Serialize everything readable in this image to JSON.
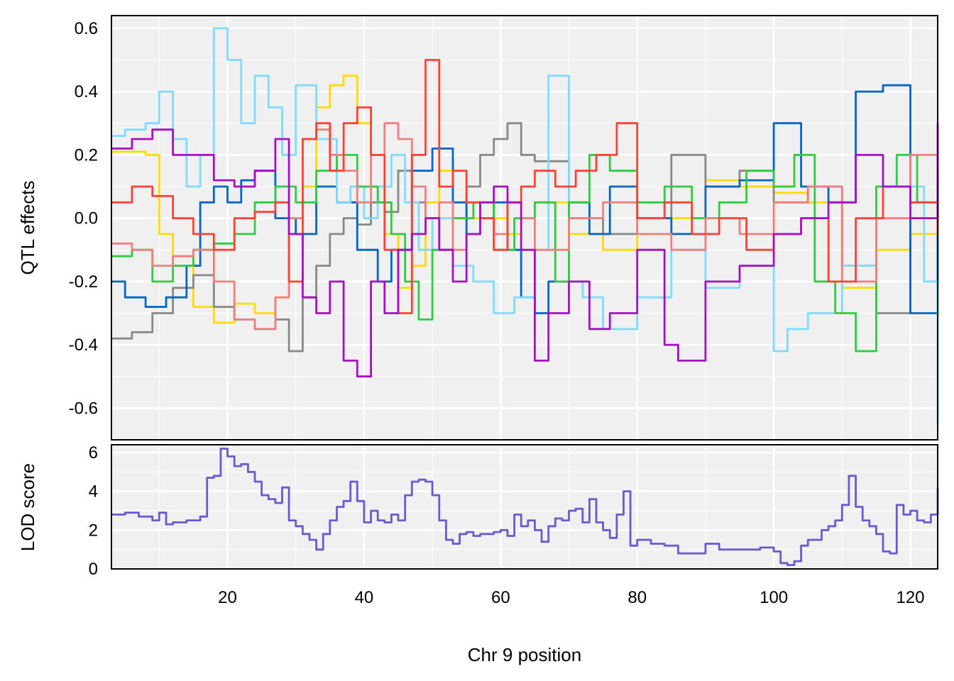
{
  "chart_data": [
    {
      "type": "line",
      "panel": "qtl-effects",
      "ylabel": "QTL effects",
      "xlim": [
        3,
        124
      ],
      "ylim": [
        -0.7,
        0.64
      ],
      "x_ticks": [
        20,
        40,
        60,
        80,
        100,
        120
      ],
      "y_ticks": [
        -0.6,
        -0.4,
        -0.2,
        0.0,
        0.2,
        0.4,
        0.6
      ],
      "y_tick_labels": [
        "-0.6",
        "-0.4",
        "-0.2",
        "0.0",
        "0.2",
        "0.4",
        "0.6"
      ],
      "grid": true,
      "series": [
        {
          "color": "#FFDC00",
          "x": [
            3,
            8,
            10,
            12,
            15,
            18,
            21,
            24,
            27,
            29,
            31,
            33,
            35,
            37,
            39,
            41,
            43,
            45,
            47,
            49,
            51,
            53,
            55,
            57,
            59,
            61,
            63,
            65,
            70,
            75,
            80,
            85,
            90,
            95,
            100,
            105,
            110,
            115,
            120,
            124
          ],
          "y": [
            0.21,
            0.2,
            -0.05,
            -0.12,
            -0.28,
            -0.33,
            -0.27,
            -0.3,
            -0.25,
            -0.2,
            0.1,
            0.35,
            0.42,
            0.45,
            0.3,
            0.1,
            -0.05,
            -0.22,
            -0.15,
            0.05,
            0.15,
            0.05,
            0.0,
            0.05,
            0.0,
            -0.05,
            0.0,
            0.05,
            -0.05,
            -0.1,
            -0.05,
            0.0,
            0.12,
            0.1,
            0.08,
            0.05,
            -0.22,
            -0.1,
            -0.05,
            -0.02
          ]
        },
        {
          "color": "#888888",
          "x": [
            3,
            6,
            9,
            12,
            15,
            18,
            21,
            24,
            27,
            29,
            31,
            33,
            35,
            37,
            39,
            41,
            43,
            45,
            47,
            49,
            51,
            53,
            55,
            57,
            59,
            61,
            63,
            65,
            70,
            75,
            80,
            85,
            90,
            95,
            100,
            105,
            110,
            115,
            120,
            124
          ],
          "y": [
            -0.38,
            -0.36,
            -0.3,
            -0.22,
            -0.18,
            -0.28,
            -0.32,
            -0.35,
            -0.32,
            -0.42,
            -0.25,
            -0.15,
            -0.05,
            0.0,
            -0.02,
            0.05,
            0.02,
            0.15,
            0.05,
            0.0,
            -0.1,
            0.0,
            0.1,
            0.2,
            0.25,
            0.3,
            0.2,
            0.18,
            0.0,
            -0.05,
            0.0,
            0.2,
            0.1,
            0.15,
            0.05,
            0.1,
            -0.15,
            -0.3,
            0.0,
            0.15
          ]
        },
        {
          "color": "#0064C9",
          "x": [
            3,
            5,
            8,
            11,
            14,
            16,
            18,
            20,
            22,
            24,
            27,
            30,
            33,
            36,
            39,
            42,
            44,
            47,
            50,
            53,
            55,
            57,
            59,
            61,
            63,
            65,
            67,
            70,
            73,
            76,
            80,
            85,
            90,
            95,
            100,
            104,
            108,
            112,
            116,
            120,
            124
          ],
          "y": [
            -0.2,
            -0.25,
            -0.28,
            -0.25,
            -0.15,
            0.05,
            0.1,
            0.05,
            0.12,
            0.15,
            0.0,
            -0.05,
            0.1,
            0.05,
            -0.1,
            -0.2,
            -0.1,
            0.15,
            0.22,
            0.05,
            -0.05,
            0.0,
            0.05,
            -0.1,
            -0.25,
            -0.3,
            -0.2,
            0.05,
            -0.05,
            0.1,
            0.0,
            -0.05,
            0.1,
            0.12,
            0.3,
            0.1,
            0.05,
            0.4,
            0.42,
            -0.3,
            0.0
          ]
        },
        {
          "color": "#7FDBFF",
          "x": [
            3,
            5,
            8,
            10,
            12,
            14,
            16,
            18,
            20,
            22,
            24,
            26,
            28,
            30,
            33,
            36,
            38,
            40,
            42,
            44,
            46,
            48,
            50,
            53,
            56,
            59,
            62,
            65,
            67,
            70,
            72,
            75,
            80,
            85,
            90,
            95,
            100,
            102,
            105,
            110,
            115,
            120,
            122,
            124
          ],
          "y": [
            0.26,
            0.28,
            0.3,
            0.4,
            0.25,
            0.1,
            0.2,
            0.6,
            0.5,
            0.3,
            0.45,
            0.35,
            0.2,
            0.42,
            0.25,
            0.05,
            0.1,
            0.0,
            0.1,
            0.2,
            0.05,
            -0.1,
            0.0,
            -0.15,
            -0.2,
            -0.3,
            -0.25,
            -0.1,
            0.45,
            -0.2,
            -0.25,
            -0.35,
            -0.25,
            -0.1,
            -0.22,
            -0.15,
            -0.42,
            -0.35,
            -0.3,
            -0.15,
            0.0,
            0.1,
            -0.2,
            -0.65
          ]
        },
        {
          "color": "#2ECC40",
          "x": [
            3,
            6,
            9,
            12,
            15,
            18,
            21,
            24,
            27,
            30,
            33,
            36,
            39,
            42,
            44,
            46,
            48,
            50,
            53,
            56,
            59,
            62,
            65,
            68,
            70,
            73,
            76,
            80,
            84,
            88,
            92,
            96,
            100,
            103,
            106,
            109,
            112,
            115,
            118,
            121,
            124
          ],
          "y": [
            -0.12,
            -0.1,
            -0.2,
            -0.15,
            -0.1,
            -0.08,
            -0.05,
            0.05,
            0.1,
            0.05,
            0.15,
            0.2,
            0.1,
            0.05,
            -0.05,
            -0.2,
            -0.32,
            -0.1,
            0.0,
            0.05,
            -0.1,
            0.0,
            0.05,
            -0.2,
            0.05,
            0.2,
            0.15,
            0.05,
            0.1,
            0.0,
            0.05,
            0.15,
            0.1,
            0.2,
            -0.2,
            -0.3,
            -0.42,
            0.1,
            0.2,
            0.05,
            -0.05
          ]
        },
        {
          "color": "#F08080",
          "x": [
            3,
            6,
            9,
            12,
            15,
            18,
            21,
            24,
            27,
            29,
            31,
            33,
            35,
            37,
            39,
            41,
            43,
            45,
            47,
            49,
            51,
            53,
            55,
            57,
            59,
            61,
            63,
            65,
            70,
            75,
            80,
            85,
            90,
            95,
            100,
            105,
            110,
            115,
            120,
            124
          ],
          "y": [
            -0.08,
            -0.1,
            -0.15,
            -0.12,
            -0.1,
            -0.2,
            -0.32,
            -0.35,
            -0.25,
            0.0,
            0.25,
            0.28,
            0.2,
            0.15,
            0.05,
            0.2,
            0.3,
            0.25,
            0.1,
            0.0,
            0.05,
            -0.1,
            -0.05,
            0.0,
            -0.05,
            0.05,
            0.0,
            -0.1,
            0.0,
            0.05,
            -0.05,
            -0.1,
            0.0,
            -0.05,
            0.05,
            0.1,
            -0.2,
            0.0,
            0.2,
            0.1
          ]
        },
        {
          "color": "#FF4136",
          "x": [
            3,
            6,
            9,
            12,
            15,
            18,
            21,
            24,
            27,
            29,
            31,
            33,
            35,
            37,
            39,
            41,
            43,
            45,
            47,
            49,
            51,
            53,
            55,
            57,
            59,
            61,
            63,
            65,
            68,
            71,
            74,
            77,
            80,
            84,
            88,
            92,
            96,
            100,
            104,
            108,
            112,
            116,
            120,
            124
          ],
          "y": [
            0.05,
            0.1,
            0.07,
            0.0,
            -0.05,
            -0.1,
            0.0,
            0.02,
            0.05,
            -0.2,
            0.25,
            0.3,
            0.15,
            0.3,
            0.35,
            0.2,
            -0.1,
            -0.3,
            0.2,
            0.5,
            0.1,
            0.15,
            0.05,
            0.0,
            -0.1,
            0.05,
            0.1,
            0.15,
            0.1,
            0.15,
            0.2,
            0.3,
            0.0,
            0.05,
            -0.05,
            0.0,
            -0.1,
            -0.05,
            0.0,
            -0.2,
            0.0,
            0.1,
            0.05,
            -0.05
          ]
        },
        {
          "color": "#A70FC4",
          "x": [
            3,
            6,
            9,
            12,
            15,
            18,
            21,
            24,
            27,
            29,
            31,
            33,
            35,
            37,
            39,
            41,
            43,
            45,
            47,
            49,
            51,
            53,
            55,
            57,
            59,
            61,
            63,
            65,
            67,
            70,
            73,
            76,
            80,
            84,
            86,
            90,
            95,
            100,
            104,
            108,
            112,
            116,
            120,
            124
          ],
          "y": [
            0.22,
            0.25,
            0.28,
            0.2,
            0.2,
            0.12,
            0.1,
            0.15,
            0.25,
            -0.05,
            -0.25,
            -0.3,
            -0.2,
            -0.45,
            -0.5,
            -0.2,
            -0.3,
            -0.1,
            -0.05,
            0.0,
            -0.1,
            -0.2,
            -0.05,
            0.05,
            0.1,
            0.05,
            -0.1,
            -0.45,
            -0.3,
            -0.2,
            -0.35,
            -0.3,
            -0.1,
            -0.4,
            -0.45,
            -0.2,
            -0.15,
            -0.05,
            0.0,
            0.05,
            0.2,
            0.1,
            0.0,
            0.3
          ]
        }
      ]
    },
    {
      "type": "line",
      "panel": "lod",
      "ylabel": "LOD score",
      "xlabel": "Chr 9 position",
      "xlim": [
        3,
        124
      ],
      "ylim": [
        0,
        6.4
      ],
      "x_ticks": [
        20,
        40,
        60,
        80,
        100,
        120
      ],
      "x_tick_labels": [
        "20",
        "40",
        "60",
        "80",
        "100",
        "120"
      ],
      "y_ticks": [
        0,
        2,
        4,
        6
      ],
      "y_tick_labels": [
        "0",
        "2",
        "4",
        "6"
      ],
      "grid": true,
      "series": [
        {
          "color": "#6A5ACD",
          "x": [
            3,
            5,
            7,
            9,
            10,
            11,
            12,
            14,
            16,
            17,
            18,
            19,
            20,
            21,
            22,
            23,
            24,
            25,
            26,
            27,
            28,
            29,
            30,
            31,
            32,
            33,
            34,
            35,
            36,
            37,
            38,
            39,
            40,
            41,
            42,
            43,
            44,
            45,
            46,
            47,
            48,
            49,
            50,
            51,
            52,
            53,
            54,
            55,
            56,
            57,
            58,
            59,
            60,
            61,
            62,
            63,
            64,
            65,
            66,
            67,
            68,
            69,
            70,
            71,
            72,
            73,
            74,
            75,
            76,
            77,
            78,
            79,
            80,
            82,
            84,
            86,
            88,
            90,
            92,
            94,
            96,
            98,
            100,
            101,
            102,
            103,
            104,
            105,
            106,
            107,
            108,
            109,
            110,
            111,
            112,
            113,
            114,
            115,
            116,
            117,
            118,
            119,
            120,
            121,
            122,
            123,
            124
          ],
          "y": [
            2.8,
            2.9,
            2.7,
            2.5,
            2.9,
            2.3,
            2.4,
            2.5,
            2.7,
            4.7,
            4.8,
            6.2,
            5.8,
            5.3,
            5.4,
            5.0,
            4.5,
            3.8,
            3.6,
            3.4,
            4.2,
            2.5,
            2.2,
            1.8,
            1.5,
            1.0,
            1.8,
            2.5,
            3.2,
            3.5,
            4.5,
            3.5,
            2.4,
            3.0,
            2.5,
            2.4,
            2.8,
            2.5,
            3.8,
            4.5,
            4.6,
            4.5,
            3.8,
            2.5,
            1.5,
            1.3,
            1.8,
            1.9,
            1.7,
            1.8,
            1.8,
            1.9,
            2.0,
            1.7,
            2.8,
            2.2,
            2.5,
            2.0,
            1.4,
            2.2,
            2.6,
            2.5,
            3.0,
            3.1,
            2.4,
            3.6,
            2.4,
            2.0,
            1.6,
            2.8,
            4.0,
            1.2,
            1.5,
            1.3,
            1.2,
            0.8,
            0.8,
            1.3,
            1.0,
            1.0,
            1.0,
            1.1,
            0.9,
            0.3,
            0.2,
            0.4,
            1.2,
            1.5,
            1.5,
            2.0,
            2.2,
            2.5,
            3.3,
            4.8,
            3.2,
            2.5,
            2.2,
            1.8,
            0.9,
            0.8,
            3.3,
            2.8,
            3.0,
            2.5,
            2.4,
            2.8,
            4.2
          ]
        }
      ]
    }
  ]
}
